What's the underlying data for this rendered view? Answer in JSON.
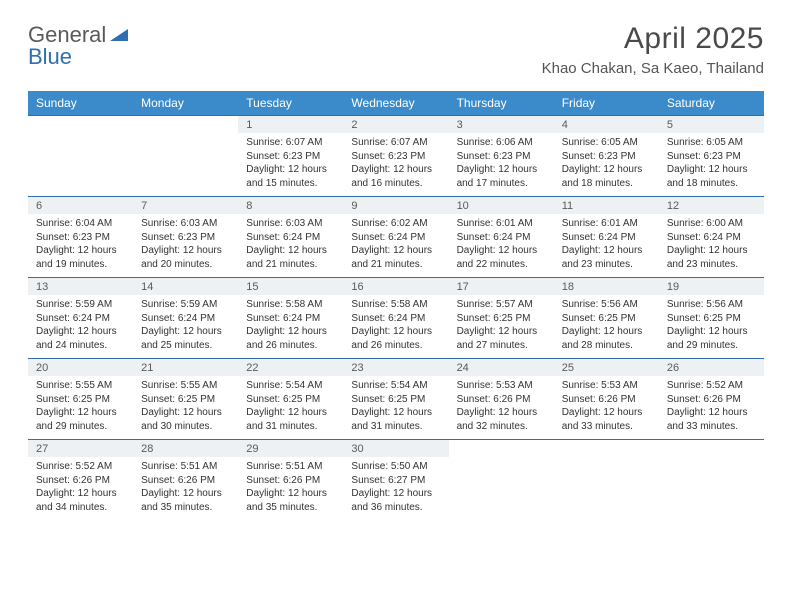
{
  "brand": {
    "part1": "General",
    "part2": "Blue"
  },
  "title": "April 2025",
  "location": "Khao Chakan, Sa Kaeo, Thailand",
  "colors": {
    "header_bg": "#3b8aca",
    "header_text": "#ffffff",
    "daynum_bg": "#eef1f3",
    "rule": "#2f6fb0",
    "text": "#333333",
    "brand_blue": "#2f6fb0"
  },
  "weekdays": [
    "Sunday",
    "Monday",
    "Tuesday",
    "Wednesday",
    "Thursday",
    "Friday",
    "Saturday"
  ],
  "weeks": [
    [
      null,
      null,
      {
        "n": "1",
        "sr": "Sunrise: 6:07 AM",
        "ss": "Sunset: 6:23 PM",
        "d1": "Daylight: 12 hours",
        "d2": "and 15 minutes."
      },
      {
        "n": "2",
        "sr": "Sunrise: 6:07 AM",
        "ss": "Sunset: 6:23 PM",
        "d1": "Daylight: 12 hours",
        "d2": "and 16 minutes."
      },
      {
        "n": "3",
        "sr": "Sunrise: 6:06 AM",
        "ss": "Sunset: 6:23 PM",
        "d1": "Daylight: 12 hours",
        "d2": "and 17 minutes."
      },
      {
        "n": "4",
        "sr": "Sunrise: 6:05 AM",
        "ss": "Sunset: 6:23 PM",
        "d1": "Daylight: 12 hours",
        "d2": "and 18 minutes."
      },
      {
        "n": "5",
        "sr": "Sunrise: 6:05 AM",
        "ss": "Sunset: 6:23 PM",
        "d1": "Daylight: 12 hours",
        "d2": "and 18 minutes."
      }
    ],
    [
      {
        "n": "6",
        "sr": "Sunrise: 6:04 AM",
        "ss": "Sunset: 6:23 PM",
        "d1": "Daylight: 12 hours",
        "d2": "and 19 minutes."
      },
      {
        "n": "7",
        "sr": "Sunrise: 6:03 AM",
        "ss": "Sunset: 6:23 PM",
        "d1": "Daylight: 12 hours",
        "d2": "and 20 minutes."
      },
      {
        "n": "8",
        "sr": "Sunrise: 6:03 AM",
        "ss": "Sunset: 6:24 PM",
        "d1": "Daylight: 12 hours",
        "d2": "and 21 minutes."
      },
      {
        "n": "9",
        "sr": "Sunrise: 6:02 AM",
        "ss": "Sunset: 6:24 PM",
        "d1": "Daylight: 12 hours",
        "d2": "and 21 minutes."
      },
      {
        "n": "10",
        "sr": "Sunrise: 6:01 AM",
        "ss": "Sunset: 6:24 PM",
        "d1": "Daylight: 12 hours",
        "d2": "and 22 minutes."
      },
      {
        "n": "11",
        "sr": "Sunrise: 6:01 AM",
        "ss": "Sunset: 6:24 PM",
        "d1": "Daylight: 12 hours",
        "d2": "and 23 minutes."
      },
      {
        "n": "12",
        "sr": "Sunrise: 6:00 AM",
        "ss": "Sunset: 6:24 PM",
        "d1": "Daylight: 12 hours",
        "d2": "and 23 minutes."
      }
    ],
    [
      {
        "n": "13",
        "sr": "Sunrise: 5:59 AM",
        "ss": "Sunset: 6:24 PM",
        "d1": "Daylight: 12 hours",
        "d2": "and 24 minutes."
      },
      {
        "n": "14",
        "sr": "Sunrise: 5:59 AM",
        "ss": "Sunset: 6:24 PM",
        "d1": "Daylight: 12 hours",
        "d2": "and 25 minutes."
      },
      {
        "n": "15",
        "sr": "Sunrise: 5:58 AM",
        "ss": "Sunset: 6:24 PM",
        "d1": "Daylight: 12 hours",
        "d2": "and 26 minutes."
      },
      {
        "n": "16",
        "sr": "Sunrise: 5:58 AM",
        "ss": "Sunset: 6:24 PM",
        "d1": "Daylight: 12 hours",
        "d2": "and 26 minutes."
      },
      {
        "n": "17",
        "sr": "Sunrise: 5:57 AM",
        "ss": "Sunset: 6:25 PM",
        "d1": "Daylight: 12 hours",
        "d2": "and 27 minutes."
      },
      {
        "n": "18",
        "sr": "Sunrise: 5:56 AM",
        "ss": "Sunset: 6:25 PM",
        "d1": "Daylight: 12 hours",
        "d2": "and 28 minutes."
      },
      {
        "n": "19",
        "sr": "Sunrise: 5:56 AM",
        "ss": "Sunset: 6:25 PM",
        "d1": "Daylight: 12 hours",
        "d2": "and 29 minutes."
      }
    ],
    [
      {
        "n": "20",
        "sr": "Sunrise: 5:55 AM",
        "ss": "Sunset: 6:25 PM",
        "d1": "Daylight: 12 hours",
        "d2": "and 29 minutes."
      },
      {
        "n": "21",
        "sr": "Sunrise: 5:55 AM",
        "ss": "Sunset: 6:25 PM",
        "d1": "Daylight: 12 hours",
        "d2": "and 30 minutes."
      },
      {
        "n": "22",
        "sr": "Sunrise: 5:54 AM",
        "ss": "Sunset: 6:25 PM",
        "d1": "Daylight: 12 hours",
        "d2": "and 31 minutes."
      },
      {
        "n": "23",
        "sr": "Sunrise: 5:54 AM",
        "ss": "Sunset: 6:25 PM",
        "d1": "Daylight: 12 hours",
        "d2": "and 31 minutes."
      },
      {
        "n": "24",
        "sr": "Sunrise: 5:53 AM",
        "ss": "Sunset: 6:26 PM",
        "d1": "Daylight: 12 hours",
        "d2": "and 32 minutes."
      },
      {
        "n": "25",
        "sr": "Sunrise: 5:53 AM",
        "ss": "Sunset: 6:26 PM",
        "d1": "Daylight: 12 hours",
        "d2": "and 33 minutes."
      },
      {
        "n": "26",
        "sr": "Sunrise: 5:52 AM",
        "ss": "Sunset: 6:26 PM",
        "d1": "Daylight: 12 hours",
        "d2": "and 33 minutes."
      }
    ],
    [
      {
        "n": "27",
        "sr": "Sunrise: 5:52 AM",
        "ss": "Sunset: 6:26 PM",
        "d1": "Daylight: 12 hours",
        "d2": "and 34 minutes."
      },
      {
        "n": "28",
        "sr": "Sunrise: 5:51 AM",
        "ss": "Sunset: 6:26 PM",
        "d1": "Daylight: 12 hours",
        "d2": "and 35 minutes."
      },
      {
        "n": "29",
        "sr": "Sunrise: 5:51 AM",
        "ss": "Sunset: 6:26 PM",
        "d1": "Daylight: 12 hours",
        "d2": "and 35 minutes."
      },
      {
        "n": "30",
        "sr": "Sunrise: 5:50 AM",
        "ss": "Sunset: 6:27 PM",
        "d1": "Daylight: 12 hours",
        "d2": "and 36 minutes."
      },
      null,
      null,
      null
    ]
  ]
}
